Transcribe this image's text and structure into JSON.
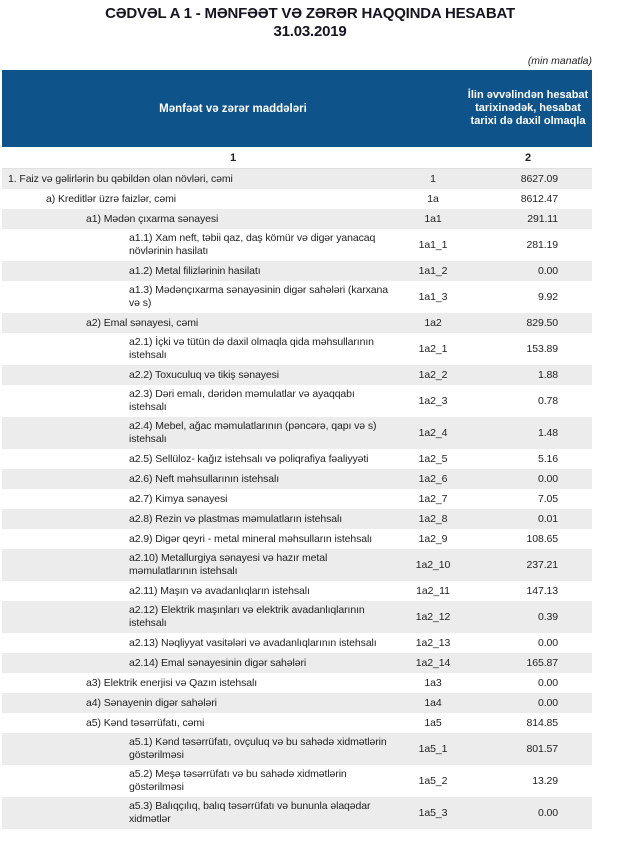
{
  "title": {
    "line1": "CƏDVƏL A 1 - MƏNFƏƏT VƏ ZƏRƏR HAQQINDA HESABAT",
    "line2": "31.03.2019"
  },
  "unit_note": "(min manatla)",
  "colors": {
    "header_bg": "#0e5389",
    "row_alt_bg": "#ececec",
    "header_text": "#ffffff"
  },
  "table": {
    "col1_header": "Mənfəət və zərər maddələri",
    "col2_header": "İlin əvvəlindən hesabat tarixinədək, hesabat tarixi də daxil olmaqla",
    "col_numbers": [
      "1",
      "2"
    ],
    "rows": [
      {
        "level": 0,
        "label": "1. Faiz və gəlirlərin bu qəbildən olan növləri, cəmi",
        "code": "1",
        "value": "8627.09"
      },
      {
        "level": 1,
        "label": "a) Kreditlər üzrə faizlər, cəmi",
        "code": "1a",
        "value": "8612.47"
      },
      {
        "level": 2,
        "label": "a1) Mədən çıxarma sənayesi",
        "code": "1a1",
        "value": "291.11"
      },
      {
        "level": 3,
        "label": "a1.1) Xam neft, təbii qaz, daş kömür və digər yanacaq növlərinin hasilatı",
        "code": "1a1_1",
        "value": "281.19"
      },
      {
        "level": 3,
        "label": "a1.2) Metal filizlərinin hasilatı",
        "code": "1a1_2",
        "value": "0.00"
      },
      {
        "level": 3,
        "label": "a1.3) Mədənçıxarma sənayəsinin digər sahələri (karxana və s)",
        "code": "1a1_3",
        "value": "9.92"
      },
      {
        "level": 2,
        "label": "a2) Emal sənayesi, cəmi",
        "code": "1a2",
        "value": "829.50"
      },
      {
        "level": 3,
        "label": "a2.1) İçki və tütün də daxil olmaqla qida məhsullarının istehsalı",
        "code": "1a2_1",
        "value": "153.89"
      },
      {
        "level": 3,
        "label": "a2.2) Toxuculuq və tikiş sənayesi",
        "code": "1a2_2",
        "value": "1.88"
      },
      {
        "level": 3,
        "label": "a2.3) Dəri emalı, dəridən məmulatlar və ayaqqabı istehsalı",
        "code": "1a2_3",
        "value": "0.78"
      },
      {
        "level": 3,
        "label": "a2.4) Mebel, ağac məmulatlarının (pəncərə, qapı və s) istehsalı",
        "code": "1a2_4",
        "value": "1.48"
      },
      {
        "level": 3,
        "label": "a2.5) Sellüloz- kağız istehsalı və poliqrafiya fəaliyyəti",
        "code": "1a2_5",
        "value": "5.16"
      },
      {
        "level": 3,
        "label": "a2.6) Neft məhsullarının istehsalı",
        "code": "1a2_6",
        "value": "0.00"
      },
      {
        "level": 3,
        "label": "a2.7) Kimya sənayesi",
        "code": "1a2_7",
        "value": "7.05"
      },
      {
        "level": 3,
        "label": "a2.8) Rezin və plastmas məmulatların istehsalı",
        "code": "1a2_8",
        "value": "0.01"
      },
      {
        "level": 3,
        "label": "a2.9) Digər qeyri - metal mineral məhsulların istehsalı",
        "code": "1a2_9",
        "value": "108.65"
      },
      {
        "level": 3,
        "label": "a2.10) Metallurgiya sənayesi və hazır metal məmulatlarının istehsalı",
        "code": "1a2_10",
        "value": "237.21"
      },
      {
        "level": 3,
        "label": "a2.11) Maşın və avadanlıqların istehsalı",
        "code": "1a2_11",
        "value": "147.13"
      },
      {
        "level": 3,
        "label": "a2.12) Elektrik maşınları və elektrik avadanlıqlarının istehsalı",
        "code": "1a2_12",
        "value": "0.39"
      },
      {
        "level": 3,
        "label": "a2.13) Nəqliyyat vasitələri və avadanlıqlarının istehsalı",
        "code": "1a2_13",
        "value": "0.00"
      },
      {
        "level": 3,
        "label": "a2.14) Emal sənayesinin digər sahələri",
        "code": "1a2_14",
        "value": "165.87"
      },
      {
        "level": 2,
        "label": "a3) Elektrik enerjisi və Qazın istehsalı",
        "code": "1a3",
        "value": "0.00"
      },
      {
        "level": 2,
        "label": "a4) Sənayenin digər sahələri",
        "code": "1a4",
        "value": "0.00"
      },
      {
        "level": 2,
        "label": "a5) Kənd təsərrüfatı, cəmi",
        "code": "1a5",
        "value": "814.85"
      },
      {
        "level": 3,
        "label": "a5.1) Kənd təsərrüfatı, ovçuluq və bu sahədə xidmətlərin göstərilməsi",
        "code": "1a5_1",
        "value": "801.57"
      },
      {
        "level": 3,
        "label": "a5.2) Meşə təsərrüfatı və bu sahədə xidmətlərin göstərilməsi",
        "code": "1a5_2",
        "value": "13.29"
      },
      {
        "level": 3,
        "label": "a5.3) Balıqçılıq, balıq təsərrüfatı və bununla əlaqədar xidmətlər",
        "code": "1a5_3",
        "value": "0.00"
      }
    ]
  }
}
